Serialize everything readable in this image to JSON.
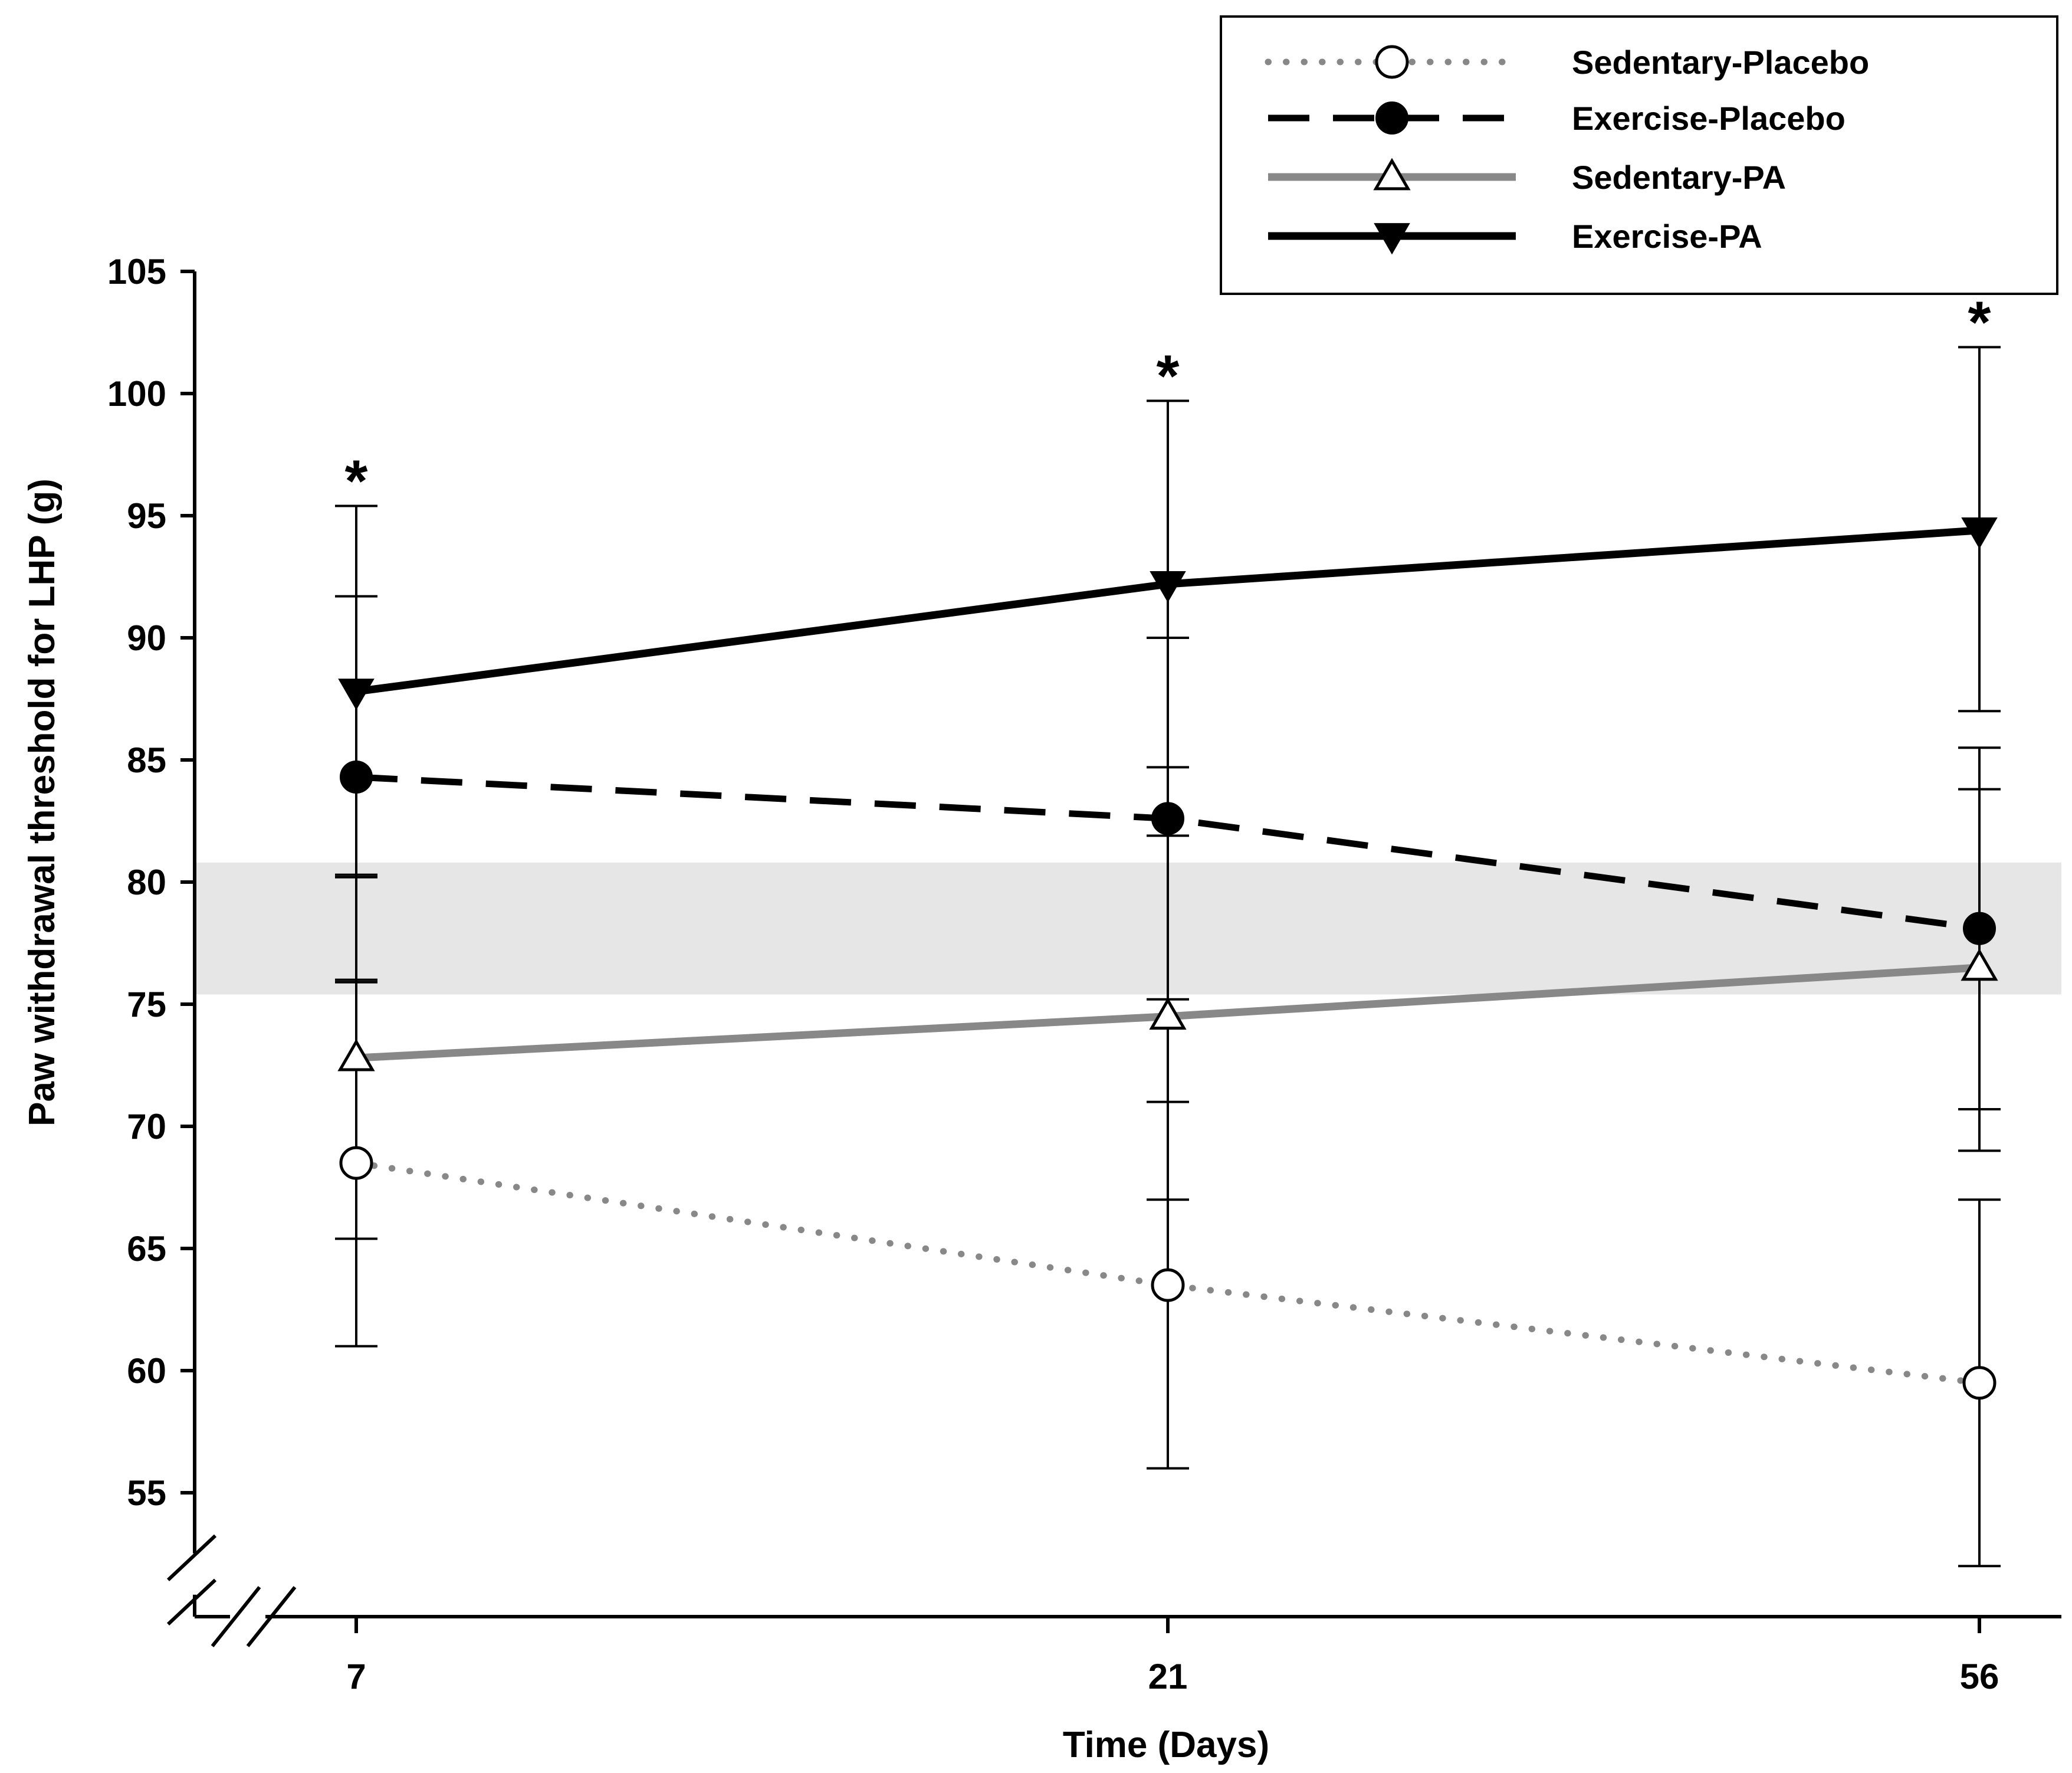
{
  "chart_data": {
    "type": "line",
    "xlabel": "Time (Days)",
    "ylabel": "Paw withdrawal threshold for LHP (g)",
    "x_categories": [
      "7",
      "21",
      "56"
    ],
    "ylim": [
      50,
      105
    ],
    "y_ticks": [
      "55",
      "60",
      "65",
      "70",
      "75",
      "80",
      "85",
      "90",
      "95",
      "100",
      "105"
    ],
    "axis_break": true,
    "reference_band": {
      "low": 75.4,
      "high": 80.8,
      "color": "#e6e6e6"
    },
    "significance_marker": "*",
    "significance_at": [
      "7",
      "21",
      "56"
    ],
    "series": [
      {
        "name": "Sedentary-Placebo",
        "values": [
          68.5,
          63.5,
          59.5
        ],
        "err_low": [
          61.0,
          56.0,
          52.0
        ],
        "err_high": [
          76.0,
          71.0,
          67.0
        ],
        "line_color": "#888888",
        "line_style": "dotted",
        "marker": "circle-open"
      },
      {
        "name": "Exercise-Placebo",
        "values": [
          84.3,
          82.6,
          78.1
        ],
        "err_low": [
          75.9,
          75.2,
          70.7
        ],
        "err_high": [
          91.7,
          90.0,
          85.5
        ],
        "line_color": "#000000",
        "line_style": "dashed",
        "marker": "circle-filled"
      },
      {
        "name": "Sedentary-PA",
        "values": [
          72.8,
          74.5,
          76.5
        ],
        "err_low": [
          65.4,
          67.0,
          69.0
        ],
        "err_high": [
          80.3,
          81.9,
          83.8
        ],
        "line_color": "#888888",
        "line_style": "solid",
        "marker": "triangle-up-open"
      },
      {
        "name": "Exercise-PA",
        "values": [
          87.8,
          92.2,
          94.4
        ],
        "err_low": [
          80.2,
          84.7,
          87.0
        ],
        "err_high": [
          95.4,
          99.7,
          101.9
        ],
        "line_color": "#000000",
        "line_style": "solid",
        "marker": "triangle-down-filled"
      }
    ]
  }
}
